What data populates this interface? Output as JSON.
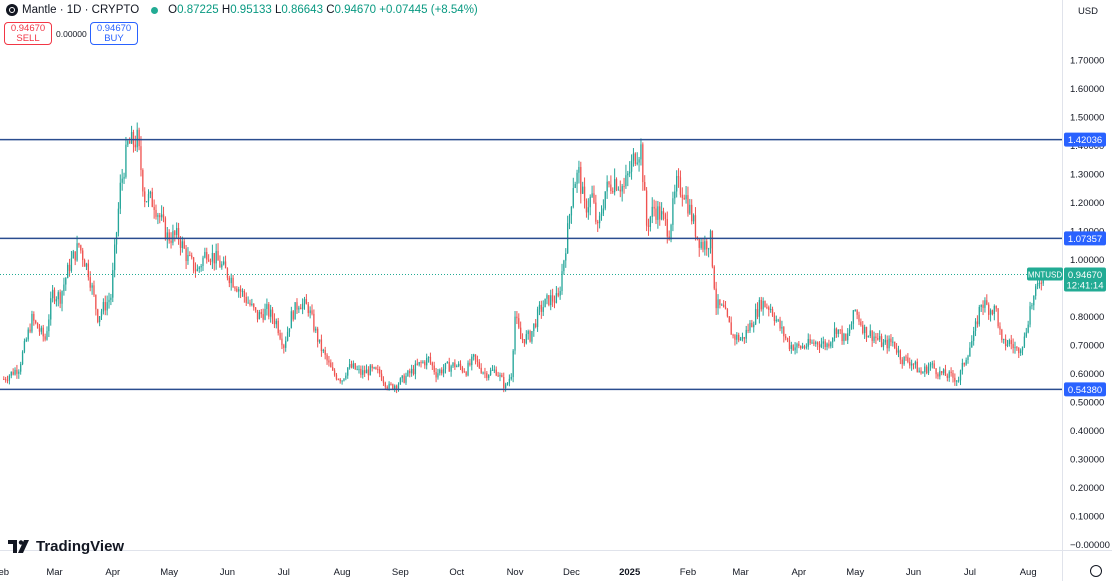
{
  "header": {
    "symbol_title": "Mantle · 1D · CRYPTO",
    "ohlc": {
      "o_label": "O",
      "o_value": "0.87225",
      "h_label": "H",
      "h_value": "0.95133",
      "l_label": "L",
      "l_value": "0.86643",
      "c_label": "C",
      "c_value": "0.94670",
      "change": "+0.07445 (+8.54%)"
    }
  },
  "trade": {
    "sell_price": "0.94670",
    "sell_label": "SELL",
    "spread": "0.00000",
    "buy_price": "0.94670",
    "buy_label": "BUY"
  },
  "currency": "USD",
  "brand": "TradingView",
  "colors": {
    "up": "#26a69a",
    "down": "#ef5350",
    "hline": "#2a4d8f",
    "last_price": "#22ab94",
    "grid_text": "#131722"
  },
  "chart_data": {
    "type": "candlestick",
    "title": "Mantle · 1D · CRYPTO",
    "ylim": [
      -0.02,
      1.84
    ],
    "y_ticks": [
      "1.70000",
      "1.60000",
      "1.50000",
      "1.40000",
      "1.30000",
      "1.20000",
      "1.10000",
      "1.00000",
      "0.90000",
      "0.80000",
      "0.70000",
      "0.60000",
      "0.50000",
      "0.40000",
      "0.30000",
      "0.20000",
      "0.10000",
      "−0.00000"
    ],
    "y_tick_values": [
      1.7,
      1.6,
      1.5,
      1.4,
      1.3,
      1.2,
      1.1,
      1.0,
      0.9,
      0.8,
      0.7,
      0.6,
      0.5,
      0.4,
      0.3,
      0.2,
      0.1,
      0.0
    ],
    "x_ticks": [
      "eb",
      "Mar",
      "Apr",
      "May",
      "Jun",
      "Jul",
      "Aug",
      "Sep",
      "Oct",
      "Nov",
      "Dec",
      "2025",
      "Feb",
      "Mar",
      "Apr",
      "May",
      "Jun",
      "Jul",
      "Aug"
    ],
    "x_tick_bold": [
      false,
      false,
      false,
      false,
      false,
      false,
      false,
      false,
      false,
      false,
      false,
      true,
      false,
      false,
      false,
      false,
      false,
      false,
      false
    ],
    "x_tick_days": [
      0,
      27,
      58,
      88,
      119,
      149,
      180,
      211,
      241,
      272,
      302,
      333,
      364,
      392,
      423,
      453,
      484,
      514,
      545
    ],
    "day_range": [
      -2,
      563
    ],
    "horizontal_lines": [
      {
        "value": 1.42036,
        "label": "1.42036"
      },
      {
        "value": 1.07357,
        "label": "1.07357"
      },
      {
        "value": 0.5438,
        "label": "0.54380"
      }
    ],
    "last_price": {
      "value": 0.9467,
      "symbol": "MNTUSD",
      "label": "0.94670",
      "countdown": "12:41:14"
    },
    "path_days": [
      0,
      8,
      15,
      22,
      26,
      30,
      35,
      40,
      45,
      50,
      57,
      62,
      66,
      71,
      75,
      80,
      87,
      93,
      98,
      103,
      108,
      113,
      119,
      125,
      130,
      135,
      140,
      145,
      149,
      153,
      157,
      162,
      168,
      175,
      180,
      183,
      186,
      190,
      195,
      200,
      205,
      211,
      216,
      221,
      226,
      230,
      235,
      240,
      246,
      250,
      256,
      262,
      267,
      270,
      272,
      275,
      280,
      285,
      290,
      295,
      300,
      303,
      306,
      309,
      313,
      316,
      320,
      325,
      330,
      336,
      339,
      342,
      346,
      350,
      354,
      358,
      362,
      366,
      369,
      372,
      376,
      379,
      383,
      388,
      393,
      398,
      403,
      408,
      413,
      418,
      423,
      428,
      433,
      438,
      443,
      448,
      453,
      458,
      463,
      468,
      473,
      478,
      483,
      488,
      493,
      498,
      503,
      508,
      512,
      516,
      520,
      524,
      528,
      531,
      535,
      539,
      543,
      546,
      549,
      551,
      553
    ],
    "path_values": [
      0.58,
      0.62,
      0.79,
      0.72,
      0.88,
      0.87,
      0.98,
      1.05,
      0.96,
      0.8,
      0.87,
      1.25,
      1.4,
      1.42,
      1.22,
      1.2,
      1.08,
      1.08,
      1.0,
      0.96,
      1.03,
      1.0,
      0.95,
      0.9,
      0.85,
      0.8,
      0.82,
      0.78,
      0.7,
      0.8,
      0.85,
      0.83,
      0.7,
      0.6,
      0.58,
      0.62,
      0.62,
      0.6,
      0.61,
      0.6,
      0.55,
      0.57,
      0.6,
      0.63,
      0.65,
      0.6,
      0.62,
      0.63,
      0.61,
      0.65,
      0.6,
      0.61,
      0.55,
      0.6,
      0.8,
      0.72,
      0.73,
      0.82,
      0.86,
      0.86,
      1.1,
      1.27,
      1.3,
      1.18,
      1.22,
      1.1,
      1.24,
      1.28,
      1.25,
      1.37,
      1.39,
      1.12,
      1.18,
      1.15,
      1.1,
      1.26,
      1.24,
      1.15,
      1.08,
      1.05,
      1.07,
      0.84,
      0.82,
      0.73,
      0.72,
      0.78,
      0.85,
      0.83,
      0.76,
      0.7,
      0.69,
      0.7,
      0.71,
      0.7,
      0.76,
      0.71,
      0.82,
      0.75,
      0.73,
      0.7,
      0.71,
      0.65,
      0.64,
      0.6,
      0.63,
      0.6,
      0.59,
      0.58,
      0.66,
      0.73,
      0.85,
      0.83,
      0.82,
      0.7,
      0.71,
      0.68,
      0.72,
      0.83,
      0.88,
      0.93,
      0.9467
    ]
  }
}
